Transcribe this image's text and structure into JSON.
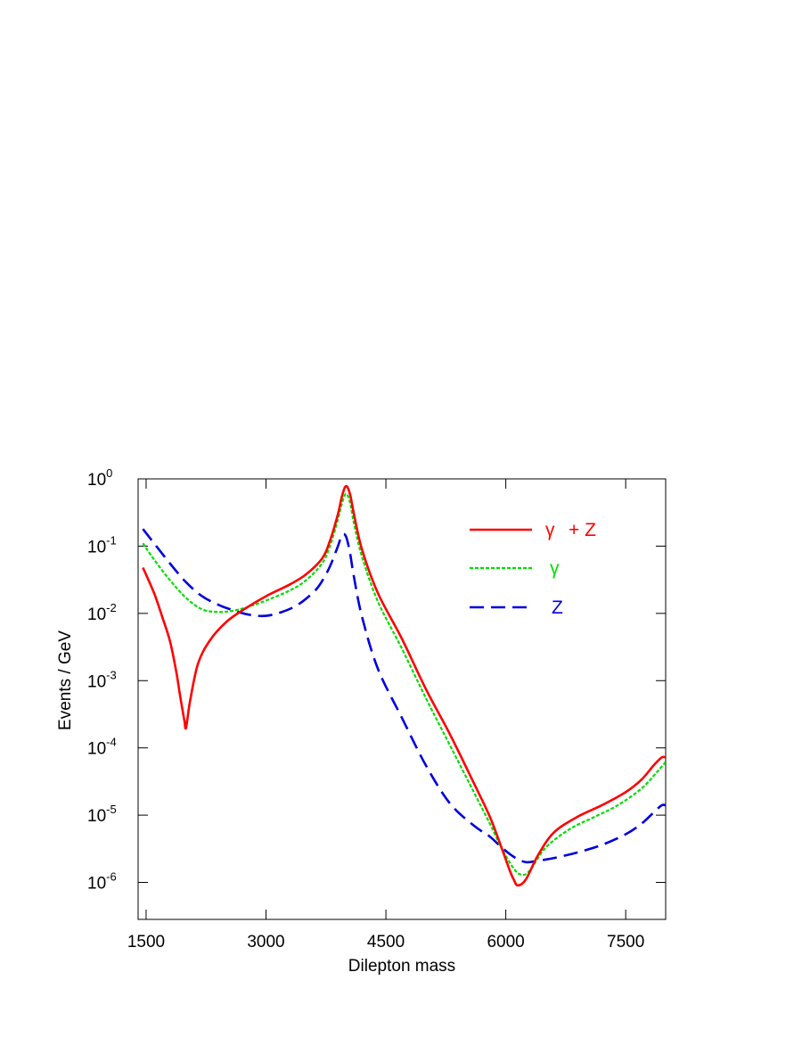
{
  "chart_data": {
    "type": "line",
    "title": "",
    "xlabel": "Dilepton mass",
    "ylabel": "Events / GeV",
    "xlim": [
      1400,
      8000
    ],
    "ylim_log10": [
      -6.55,
      0
    ],
    "yscale": "log",
    "x_ticks": [
      1500,
      3000,
      4500,
      6000,
      7500
    ],
    "x_tick_labels": [
      "1500",
      "3000",
      "4500",
      "6000",
      "7500"
    ],
    "y_ticks_exp": [
      0,
      -1,
      -2,
      -3,
      -4,
      -5,
      -6
    ],
    "y_tick_base": "10",
    "y_tick_exponents": [
      "0",
      "-1",
      "-2",
      "-3",
      "-4",
      "-5",
      "-6"
    ],
    "grid": false,
    "legend_position": "top-right",
    "series": [
      {
        "name": "γ + Z",
        "legend_parts": [
          "γ",
          "+ Z"
        ],
        "color": "#ff0000",
        "dash": "solid",
        "x": [
          1460,
          1600,
          1700,
          1800,
          1880,
          1920,
          1950,
          1980,
          2000,
          2050,
          2150,
          2300,
          2500,
          2700,
          3000,
          3300,
          3500,
          3700,
          3800,
          3900,
          3950,
          4000,
          4050,
          4100,
          4200,
          4400,
          4700,
          5000,
          5300,
          5600,
          5800,
          5950,
          6050,
          6100,
          6150,
          6250,
          6400,
          6600,
          6900,
          7200,
          7500,
          7700,
          7850,
          7950,
          8000
        ],
        "y": [
          0.048,
          0.02,
          0.009,
          0.0038,
          0.0013,
          0.00065,
          0.0004,
          0.00025,
          0.0002,
          0.0005,
          0.0018,
          0.004,
          0.0074,
          0.011,
          0.018,
          0.027,
          0.038,
          0.065,
          0.12,
          0.3,
          0.55,
          0.78,
          0.6,
          0.3,
          0.09,
          0.02,
          0.0042,
          0.00075,
          0.00016,
          3e-05,
          9.5e-06,
          3.2e-06,
          1.5e-06,
          1.1e-06,
          9e-07,
          1.1e-06,
          2.5e-06,
          5.5e-06,
          9.5e-06,
          1.4e-05,
          2.2e-05,
          3.4e-05,
          5.5e-05,
          7.2e-05,
          7.2e-05
        ]
      },
      {
        "name": "γ",
        "legend_parts": [
          "γ"
        ],
        "color": "#00dd00",
        "dash": "dotted",
        "x": [
          1460,
          1600,
          1800,
          2000,
          2200,
          2400,
          2600,
          2800,
          3000,
          3300,
          3500,
          3700,
          3800,
          3900,
          3950,
          4000,
          4050,
          4100,
          4200,
          4400,
          4700,
          5000,
          5300,
          5600,
          5800,
          5950,
          6100,
          6200,
          6300,
          6500,
          6800,
          7100,
          7400,
          7700,
          7900,
          8000
        ],
        "y": [
          0.11,
          0.063,
          0.031,
          0.017,
          0.0115,
          0.0105,
          0.011,
          0.0128,
          0.0155,
          0.022,
          0.031,
          0.055,
          0.1,
          0.25,
          0.43,
          0.6,
          0.45,
          0.22,
          0.07,
          0.015,
          0.003,
          0.00055,
          0.00011,
          2.2e-05,
          7.5e-06,
          3.2e-06,
          1.6e-06,
          1.3e-06,
          1.5e-06,
          3.3e-06,
          6.2e-06,
          9.3e-06,
          1.4e-05,
          2.5e-05,
          4.5e-05,
          6.2e-05
        ]
      },
      {
        "name": "Z",
        "legend_parts": [
          "Z"
        ],
        "color": "#0000dd",
        "dash": "dashed",
        "x": [
          1460,
          1600,
          1800,
          2000,
          2200,
          2400,
          2600,
          2800,
          3000,
          3200,
          3400,
          3600,
          3700,
          3800,
          3900,
          3950,
          4000,
          4050,
          4100,
          4200,
          4400,
          4700,
          5000,
          5300,
          5600,
          5800,
          5950,
          6100,
          6250,
          6400,
          6600,
          6900,
          7200,
          7500,
          7700,
          7850,
          7950,
          8000
        ],
        "y": [
          0.18,
          0.11,
          0.055,
          0.029,
          0.018,
          0.0135,
          0.011,
          0.0095,
          0.0092,
          0.0105,
          0.0135,
          0.021,
          0.03,
          0.05,
          0.1,
          0.145,
          0.14,
          0.08,
          0.035,
          0.009,
          0.0015,
          0.00028,
          5.5e-05,
          1.5e-05,
          7e-06,
          4.8e-06,
          3.3e-06,
          2.4e-06,
          2e-06,
          2.1e-06,
          2.3e-06,
          2.8e-06,
          3.6e-06,
          5.2e-06,
          7.5e-06,
          1.1e-05,
          1.4e-05,
          1.4e-05
        ]
      }
    ]
  }
}
